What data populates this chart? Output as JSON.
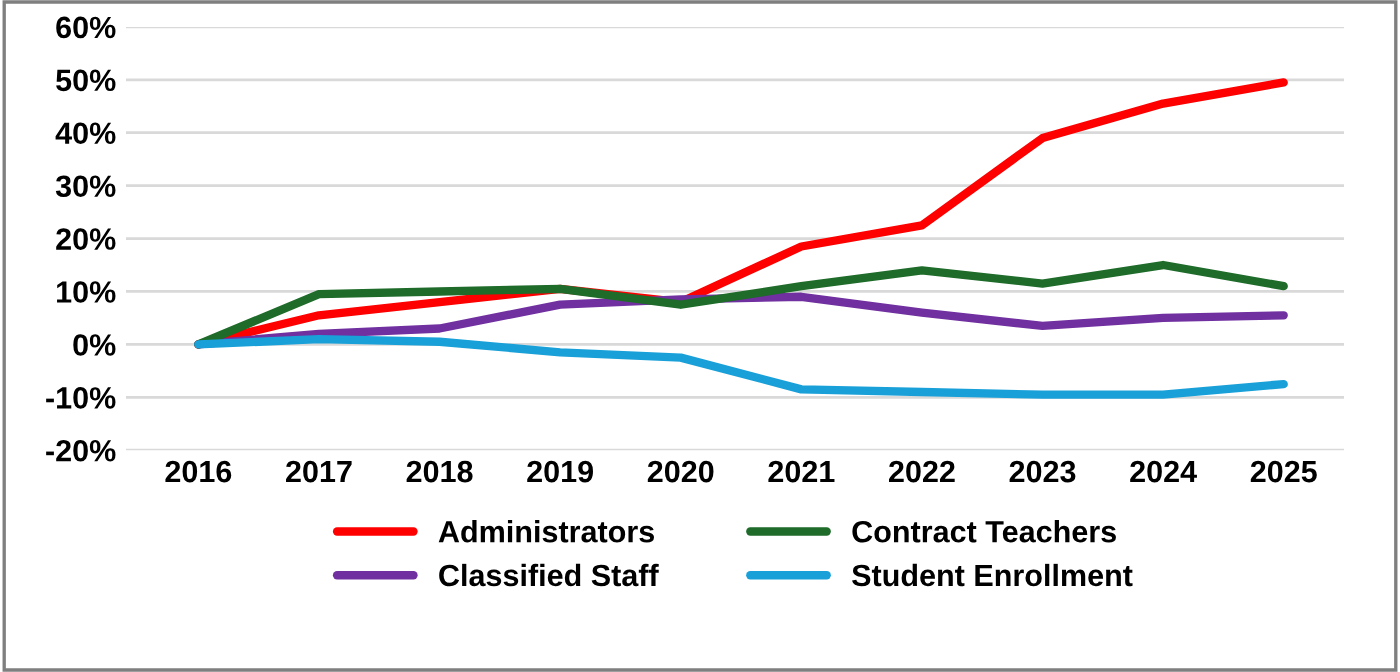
{
  "chart_data": {
    "type": "line",
    "categories": [
      "2016",
      "2017",
      "2018",
      "2019",
      "2020",
      "2021",
      "2022",
      "2023",
      "2024",
      "2025"
    ],
    "series": [
      {
        "name": "Administrators",
        "color": "#ff0000",
        "values": [
          0,
          5.5,
          8,
          10.5,
          8,
          18.5,
          22.5,
          39,
          45.5,
          49.5
        ]
      },
      {
        "name": "Classified Staff",
        "color": "#7030a0",
        "values": [
          0,
          2,
          3,
          7.5,
          8.5,
          9,
          6,
          3.5,
          5,
          5.5
        ]
      },
      {
        "name": "Contract Teachers",
        "color": "#1e6b2a",
        "values": [
          0,
          9.5,
          10,
          10.5,
          7.5,
          11,
          14,
          11.5,
          15,
          11
        ]
      },
      {
        "name": "Student Enrollment",
        "color": "#1aa0d8",
        "values": [
          0,
          1,
          0.5,
          -1.5,
          -2.5,
          -8.5,
          -9,
          -9.5,
          -9.5,
          -7.5
        ]
      }
    ],
    "ylim": [
      -20,
      60
    ],
    "yticks": [
      {
        "value": -20,
        "label": "-20%"
      },
      {
        "value": -10,
        "label": "-10%"
      },
      {
        "value": 0,
        "label": "0%"
      },
      {
        "value": 10,
        "label": "10%"
      },
      {
        "value": 20,
        "label": "20%"
      },
      {
        "value": 30,
        "label": "30%"
      },
      {
        "value": 40,
        "label": "40%"
      },
      {
        "value": 50,
        "label": "50%"
      },
      {
        "value": 60,
        "label": "60%"
      }
    ],
    "grid": "y",
    "legend": "bottom",
    "marker": "none",
    "line_style": "solid"
  }
}
